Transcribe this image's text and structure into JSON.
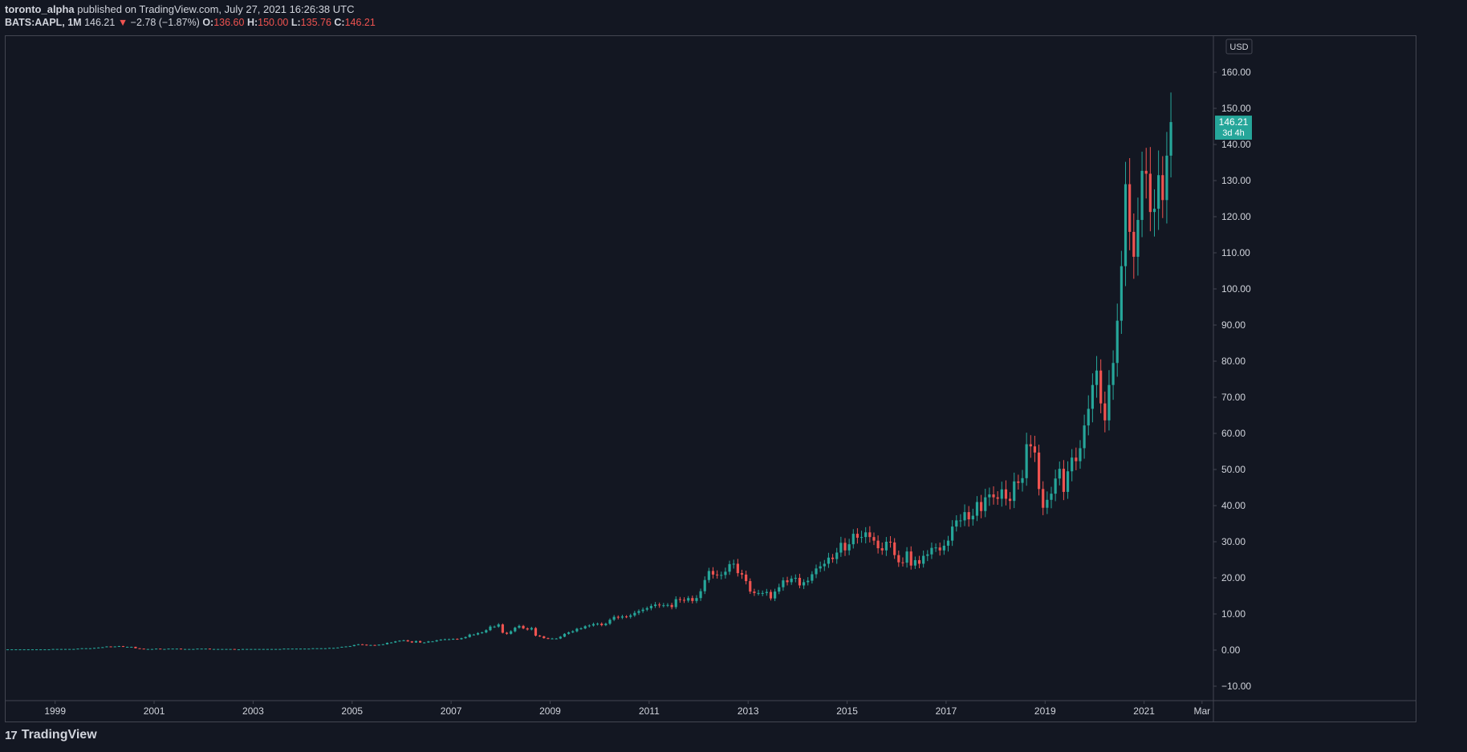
{
  "header": {
    "author": "toronto_alpha",
    "published_text": "published on TradingView.com, July 27, 2021 16:26:38 UTC",
    "symbol": "BATS:AAPL, 1M",
    "last_price": "146.21",
    "down_arrow": "▼",
    "change": "−2.78 (−1.87%)",
    "open_label": "O:",
    "open_value": "136.60",
    "high_label": "H:",
    "high_value": "150.00",
    "low_label": "L:",
    "low_value": "135.76",
    "close_label": "C:",
    "close_value": "146.21"
  },
  "footer": {
    "logo_mark": "17",
    "brand": "TradingView"
  },
  "colors": {
    "up": "#26a69a",
    "down": "#ef5350",
    "bg": "#131722",
    "border": "#434651",
    "text": "#d1d4dc"
  },
  "chart_data": {
    "type": "candlestick",
    "title": "BATS:AAPL, 1M",
    "currency": "USD",
    "current_price_label": "146.21",
    "countdown_label": "3d 4h",
    "ylim": [
      -14,
      170
    ],
    "y_ticks": [
      "160.00",
      "150.00",
      "140.00",
      "130.00",
      "120.00",
      "110.00",
      "100.00",
      "90.00",
      "80.00",
      "70.00",
      "60.00",
      "50.00",
      "40.00",
      "30.00",
      "20.00",
      "10.00",
      "0.00",
      "−10.00"
    ],
    "y_tick_values": [
      160,
      150,
      140,
      130,
      120,
      110,
      100,
      90,
      80,
      70,
      60,
      50,
      40,
      30,
      20,
      10,
      0,
      -10
    ],
    "x_tick_labels": [
      "1999",
      "2001",
      "2003",
      "2005",
      "2007",
      "2009",
      "2011",
      "2013",
      "2015",
      "2017",
      "2019",
      "2021",
      "Mar"
    ],
    "x_tick_years": [
      1999,
      2001,
      2003,
      2005,
      2007,
      2009,
      2011,
      2013,
      2015,
      2017,
      2019,
      2021,
      2022.17
    ],
    "x_range_years": [
      1998.0,
      2022.4
    ],
    "start_year": 1998.0,
    "monthly_close": [
      0.2,
      0.2,
      0.2,
      0.2,
      0.2,
      0.2,
      0.2,
      0.2,
      0.2,
      0.2,
      0.2,
      0.3,
      0.3,
      0.3,
      0.3,
      0.3,
      0.3,
      0.4,
      0.5,
      0.5,
      0.5,
      0.6,
      0.7,
      0.8,
      1.0,
      0.9,
      1.0,
      1.1,
      0.9,
      0.9,
      0.9,
      0.5,
      0.4,
      0.3,
      0.3,
      0.3,
      0.4,
      0.3,
      0.3,
      0.4,
      0.4,
      0.4,
      0.3,
      0.3,
      0.3,
      0.3,
      0.4,
      0.4,
      0.4,
      0.3,
      0.3,
      0.3,
      0.3,
      0.3,
      0.3,
      0.2,
      0.2,
      0.3,
      0.3,
      0.3,
      0.3,
      0.3,
      0.3,
      0.3,
      0.3,
      0.3,
      0.3,
      0.4,
      0.4,
      0.4,
      0.4,
      0.4,
      0.4,
      0.4,
      0.5,
      0.5,
      0.5,
      0.5,
      0.6,
      0.6,
      0.7,
      0.9,
      1.0,
      1.1,
      1.4,
      1.6,
      1.5,
      1.3,
      1.4,
      1.3,
      1.5,
      1.6,
      2.0,
      2.1,
      2.4,
      2.6,
      2.7,
      2.4,
      2.1,
      2.5,
      2.1,
      2.1,
      2.4,
      2.4,
      2.7,
      2.9,
      3.0,
      3.0,
      3.1,
      3.0,
      3.3,
      3.6,
      4.3,
      4.3,
      4.7,
      4.9,
      5.5,
      6.5,
      6.5,
      7.1,
      4.8,
      4.5,
      5.2,
      6.2,
      6.7,
      6.0,
      5.7,
      6.1,
      4.0,
      3.8,
      3.3,
      3.2,
      3.2,
      3.2,
      3.7,
      4.5,
      4.9,
      5.2,
      5.9,
      6.0,
      6.6,
      6.8,
      7.2,
      7.3,
      6.9,
      7.3,
      8.4,
      9.2,
      9.0,
      9.3,
      9.2,
      9.6,
      10.3,
      10.8,
      11.2,
      11.6,
      12.2,
      12.6,
      12.4,
      12.4,
      12.5,
      11.9,
      14.1,
      13.9,
      13.7,
      14.4,
      13.6,
      14.4,
      16.3,
      19.4,
      21.9,
      20.9,
      20.7,
      20.8,
      21.7,
      23.8,
      23.9,
      21.3,
      20.9,
      19.1,
      16.2,
      15.8,
      15.8,
      15.8,
      16.1,
      14.3,
      16.2,
      17.4,
      19.3,
      18.8,
      19.8,
      20.0,
      17.9,
      18.8,
      19.2,
      21.0,
      22.6,
      23.2,
      23.9,
      25.6,
      25.2,
      27.0,
      29.7,
      27.6,
      29.3,
      32.2,
      31.1,
      31.3,
      32.6,
      31.3,
      30.3,
      28.2,
      27.6,
      30.0,
      29.8,
      26.3,
      24.3,
      24.2,
      27.3,
      23.4,
      24.9,
      23.9,
      26.1,
      26.5,
      28.3,
      28.4,
      27.6,
      28.9,
      30.3,
      34.2,
      35.9,
      35.9,
      38.2,
      36.2,
      37.2,
      41.0,
      38.5,
      42.3,
      43.1,
      42.3,
      41.9,
      44.5,
      41.9,
      41.3,
      46.7,
      46.3,
      47.6,
      57.0,
      56.4,
      54.7,
      44.6,
      39.4,
      41.6,
      43.3,
      47.5,
      50.2,
      43.8,
      49.5,
      53.3,
      52.3,
      55.9,
      62.2,
      66.8,
      73.4,
      77.4,
      68.3,
      63.6,
      73.4,
      79.5,
      91.2,
      106.3,
      129.0,
      115.8,
      108.9,
      119.1,
      132.7,
      131.9,
      121.3,
      122.2,
      131.5,
      124.6,
      136.9,
      146.2
    ]
  }
}
